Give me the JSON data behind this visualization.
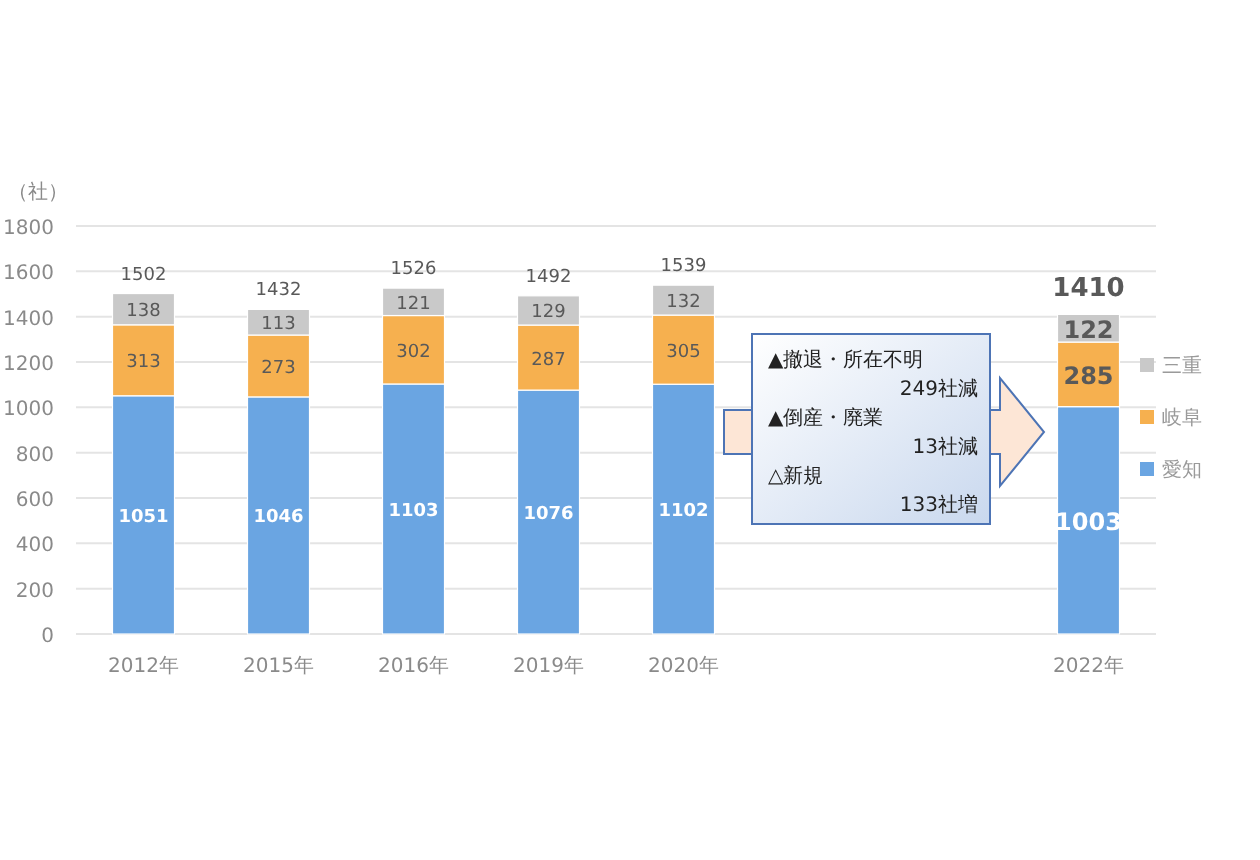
{
  "chart_data": {
    "type": "bar",
    "stacked": true,
    "ylabel": "（社）",
    "categories": [
      "2012年",
      "2015年",
      "2016年",
      "2019年",
      "2020年",
      null,
      null,
      "2022年"
    ],
    "series": [
      {
        "name": "愛知",
        "color": "#6aa5e2",
        "values": [
          1051,
          1046,
          1103,
          1076,
          1102,
          null,
          null,
          1003
        ]
      },
      {
        "name": "岐阜",
        "color": "#f6b04f",
        "values": [
          313,
          273,
          302,
          287,
          305,
          null,
          null,
          285
        ]
      },
      {
        "name": "三重",
        "color": "#c9c9c9",
        "values": [
          138,
          113,
          121,
          129,
          132,
          null,
          null,
          122
        ]
      }
    ],
    "totals": [
      "1502",
      "1432",
      "1526",
      "1492",
      "1539",
      null,
      null,
      "1410"
    ],
    "data_labels": true,
    "ylim": [
      0,
      1800
    ],
    "yticks": [
      0,
      200,
      400,
      600,
      800,
      1000,
      1200,
      1400,
      1600,
      1800
    ],
    "grid": "y",
    "legend": "right",
    "annotations": [
      "▲撤退・所在不明",
      "249社減",
      "▲倒産・廃業",
      "13社減",
      "△新規",
      "133社増"
    ]
  }
}
